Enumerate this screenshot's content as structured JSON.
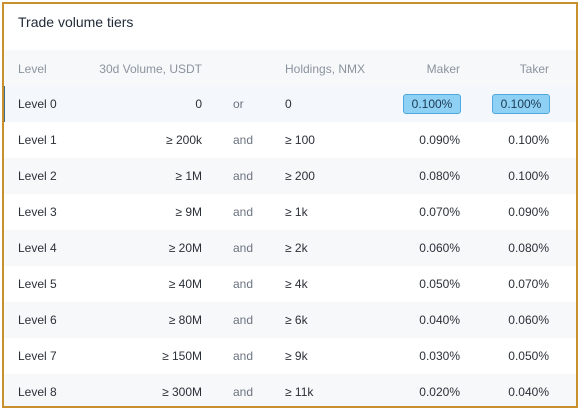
{
  "title": "Trade volume tiers",
  "headers": {
    "level": "Level",
    "volume": "30d Volume, USDT",
    "holdings": "Holdings, NMX",
    "maker": "Maker",
    "taker": "Taker"
  },
  "rows": [
    {
      "level": "Level 0",
      "volume": "0",
      "conn": "or",
      "holdings": "0",
      "maker": "0.100%",
      "taker": "0.100%",
      "active": true
    },
    {
      "level": "Level 1",
      "volume": "≥ 200k",
      "conn": "and",
      "holdings": "≥ 100",
      "maker": "0.090%",
      "taker": "0.100%"
    },
    {
      "level": "Level 2",
      "volume": "≥ 1M",
      "conn": "and",
      "holdings": "≥ 200",
      "maker": "0.080%",
      "taker": "0.100%"
    },
    {
      "level": "Level 3",
      "volume": "≥ 9M",
      "conn": "and",
      "holdings": "≥ 1k",
      "maker": "0.070%",
      "taker": "0.090%"
    },
    {
      "level": "Level 4",
      "volume": "≥ 20M",
      "conn": "and",
      "holdings": "≥ 2k",
      "maker": "0.060%",
      "taker": "0.080%"
    },
    {
      "level": "Level 5",
      "volume": "≥ 40M",
      "conn": "and",
      "holdings": "≥ 4k",
      "maker": "0.050%",
      "taker": "0.070%"
    },
    {
      "level": "Level 6",
      "volume": "≥ 80M",
      "conn": "and",
      "holdings": "≥ 6k",
      "maker": "0.040%",
      "taker": "0.060%"
    },
    {
      "level": "Level 7",
      "volume": "≥ 150M",
      "conn": "and",
      "holdings": "≥ 9k",
      "maker": "0.030%",
      "taker": "0.050%"
    },
    {
      "level": "Level 8",
      "volume": "≥ 300M",
      "conn": "and",
      "holdings": "≥ 11k",
      "maker": "0.020%",
      "taker": "0.040%"
    }
  ]
}
